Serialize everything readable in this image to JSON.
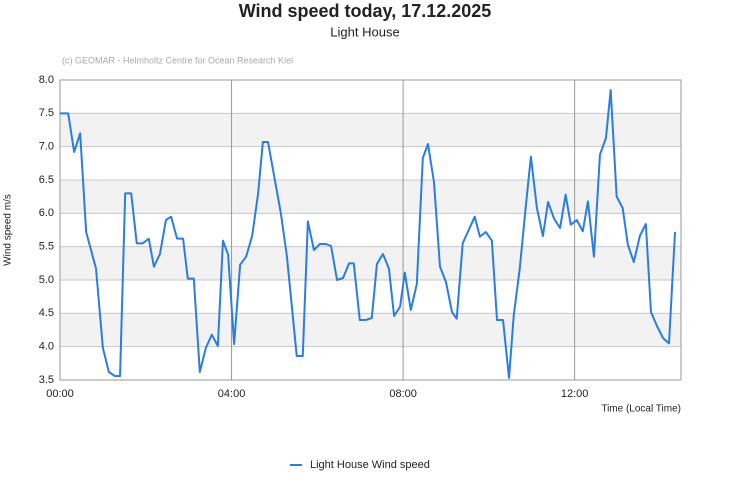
{
  "chart_data": {
    "type": "line",
    "title": "Wind speed today, 17.12.2025",
    "subtitle": "Light House",
    "credit": "(c) GEOMAR - Helmholtz Centre for Ocean Research Kiel",
    "ylabel": "Wind speed  m/s",
    "xlabel": "Time (Local Time)",
    "grid": true,
    "legend": "bottom",
    "xlim": [
      0,
      14.48
    ],
    "xticks": [
      {
        "value": 0,
        "label": "00:00"
      },
      {
        "value": 4,
        "label": "04:00"
      },
      {
        "value": 8,
        "label": "08:00"
      },
      {
        "value": 12,
        "label": "12:00"
      }
    ],
    "ylim": [
      3.5,
      8
    ],
    "yticks": [
      3.5,
      {
        "value": 4,
        "label": "4.0"
      },
      4.5,
      {
        "value": 5,
        "label": "5.0"
      },
      5.5,
      {
        "value": 6,
        "label": "6.0"
      },
      6.5,
      {
        "value": 7,
        "label": "7.0"
      },
      7.5,
      {
        "value": 8,
        "label": "8.0"
      }
    ],
    "x": [
      0,
      0.19,
      0.33,
      0.47,
      0.61,
      0.84,
      1.0,
      1.14,
      1.28,
      1.4,
      1.52,
      1.66,
      1.79,
      1.93,
      2.07,
      2.19,
      2.33,
      2.47,
      2.59,
      2.73,
      2.87,
      2.98,
      3.12,
      3.26,
      3.4,
      3.54,
      3.68,
      3.8,
      3.92,
      4.06,
      4.2,
      4.34,
      4.48,
      4.62,
      4.73,
      4.85,
      5.15,
      5.29,
      5.52,
      5.66,
      5.78,
      5.92,
      6.06,
      6.2,
      6.32,
      6.46,
      6.6,
      6.74,
      6.85,
      6.99,
      7.13,
      7.27,
      7.39,
      7.53,
      7.67,
      7.79,
      7.93,
      8.04,
      8.18,
      8.32,
      8.46,
      8.58,
      8.72,
      8.86,
      9.0,
      9.14,
      9.25,
      9.39,
      9.53,
      9.67,
      9.79,
      9.93,
      10.07,
      10.19,
      10.33,
      10.47,
      10.58,
      10.72,
      10.86,
      10.98,
      11.12,
      11.26,
      11.38,
      11.52,
      11.66,
      11.79,
      11.91,
      12.05,
      12.19,
      12.31,
      12.45,
      12.59,
      12.73,
      12.84,
      12.98,
      13.12,
      13.24,
      13.38,
      13.52,
      13.66,
      13.78,
      13.92,
      14.06,
      14.2,
      14.34
    ],
    "series": [
      {
        "name": "Light House Wind speed",
        "color": "#2a7de1",
        "values": [
          7.5,
          7.5,
          6.92,
          7.2,
          5.72,
          5.17,
          3.98,
          3.62,
          3.56,
          3.56,
          6.3,
          6.3,
          5.55,
          5.55,
          5.62,
          5.2,
          5.39,
          5.9,
          5.95,
          5.62,
          5.62,
          5.02,
          5.02,
          3.62,
          3.98,
          4.18,
          4.01,
          5.59,
          5.38,
          4.04,
          5.23,
          5.35,
          5.66,
          6.3,
          7.07,
          7.07,
          6.0,
          5.36,
          3.86,
          3.86,
          5.88,
          5.45,
          5.54,
          5.54,
          5.51,
          5.0,
          5.03,
          5.25,
          5.25,
          4.4,
          4.4,
          4.43,
          5.24,
          5.39,
          5.17,
          4.46,
          4.6,
          5.11,
          4.55,
          4.94,
          6.83,
          7.04,
          6.47,
          5.2,
          4.97,
          4.52,
          4.42,
          5.55,
          5.75,
          5.95,
          5.65,
          5.72,
          5.59,
          4.4,
          4.4,
          3.53,
          4.47,
          5.17,
          6.1,
          6.85,
          6.08,
          5.66,
          6.17,
          5.92,
          5.78,
          6.28,
          5.83,
          5.9,
          5.73,
          6.18,
          5.35,
          6.88,
          7.13,
          7.85,
          6.25,
          6.08,
          5.53,
          5.27,
          5.66,
          5.84,
          4.52,
          4.31,
          4.13,
          4.05,
          5.72
        ]
      }
    ]
  }
}
